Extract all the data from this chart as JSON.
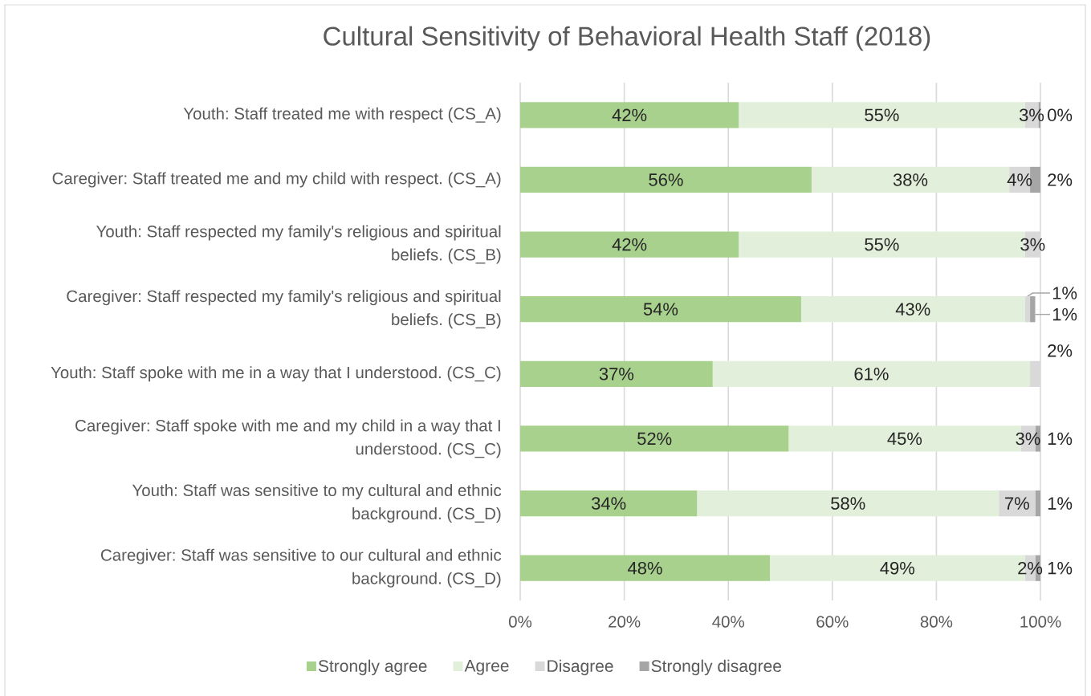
{
  "chart_data": {
    "type": "bar",
    "orientation": "horizontal",
    "stacked": true,
    "title": "Cultural Sensitivity of Behavioral Health Staff (2018)",
    "categories": [
      "Youth: Staff treated me with respect (CS_A)",
      "Caregiver: Staff treated me and my child with respect. (CS_A)",
      "Youth: Staff respected my family's religious and spiritual beliefs. (CS_B)",
      "Caregiver: Staff respected my family's religious and spiritual beliefs. (CS_B)",
      "Youth: Staff spoke with me in a way that I understood. (CS_C)",
      "Caregiver: Staff spoke with me and my child in a way that I understood. (CS_C)",
      "Youth: Staff was sensitive to my cultural and ethnic background. (CS_D)",
      "Caregiver: Staff was sensitive to our cultural and ethnic background. (CS_D)"
    ],
    "series": [
      {
        "name": "Strongly agree",
        "color": "#a9d18e",
        "values": [
          42,
          56,
          42,
          54,
          37,
          51.6,
          34,
          48
        ],
        "value_labels": [
          "42%",
          "56%",
          "42%",
          "54%",
          "37%",
          "52%",
          "34%",
          "48%"
        ]
      },
      {
        "name": "Agree",
        "color": "#e2efda",
        "values": [
          55,
          38,
          55,
          43,
          61,
          44.6,
          58,
          49
        ],
        "value_labels": [
          "55%",
          "38%",
          "55%",
          "43%",
          "61%",
          "45%",
          "58%",
          "49%"
        ]
      },
      {
        "name": "Disagree",
        "color": "#d9d9d9",
        "values": [
          2.6,
          4,
          3,
          1,
          2,
          2.8,
          7,
          2
        ],
        "value_labels": [
          "3%",
          "4%",
          "3%",
          "1%",
          "2%",
          "3%",
          "7%",
          "2%"
        ]
      },
      {
        "name": "Strongly disagree",
        "color": "#a6a6a6",
        "values": [
          0.4,
          2,
          null,
          1,
          null,
          1.0,
          1,
          1
        ],
        "value_labels": [
          "0%",
          "2%",
          null,
          "1%",
          null,
          "1%",
          "1%",
          "1%"
        ]
      }
    ],
    "xlim": [
      0,
      100
    ],
    "xticks": [
      {
        "value": 0,
        "label": "0%"
      },
      {
        "value": 20,
        "label": "20%"
      },
      {
        "value": 40,
        "label": "40%"
      },
      {
        "value": 60,
        "label": "60%"
      },
      {
        "value": 80,
        "label": "80%"
      },
      {
        "value": 100,
        "label": "100%"
      }
    ],
    "grid": "x",
    "legend": "bottom"
  }
}
